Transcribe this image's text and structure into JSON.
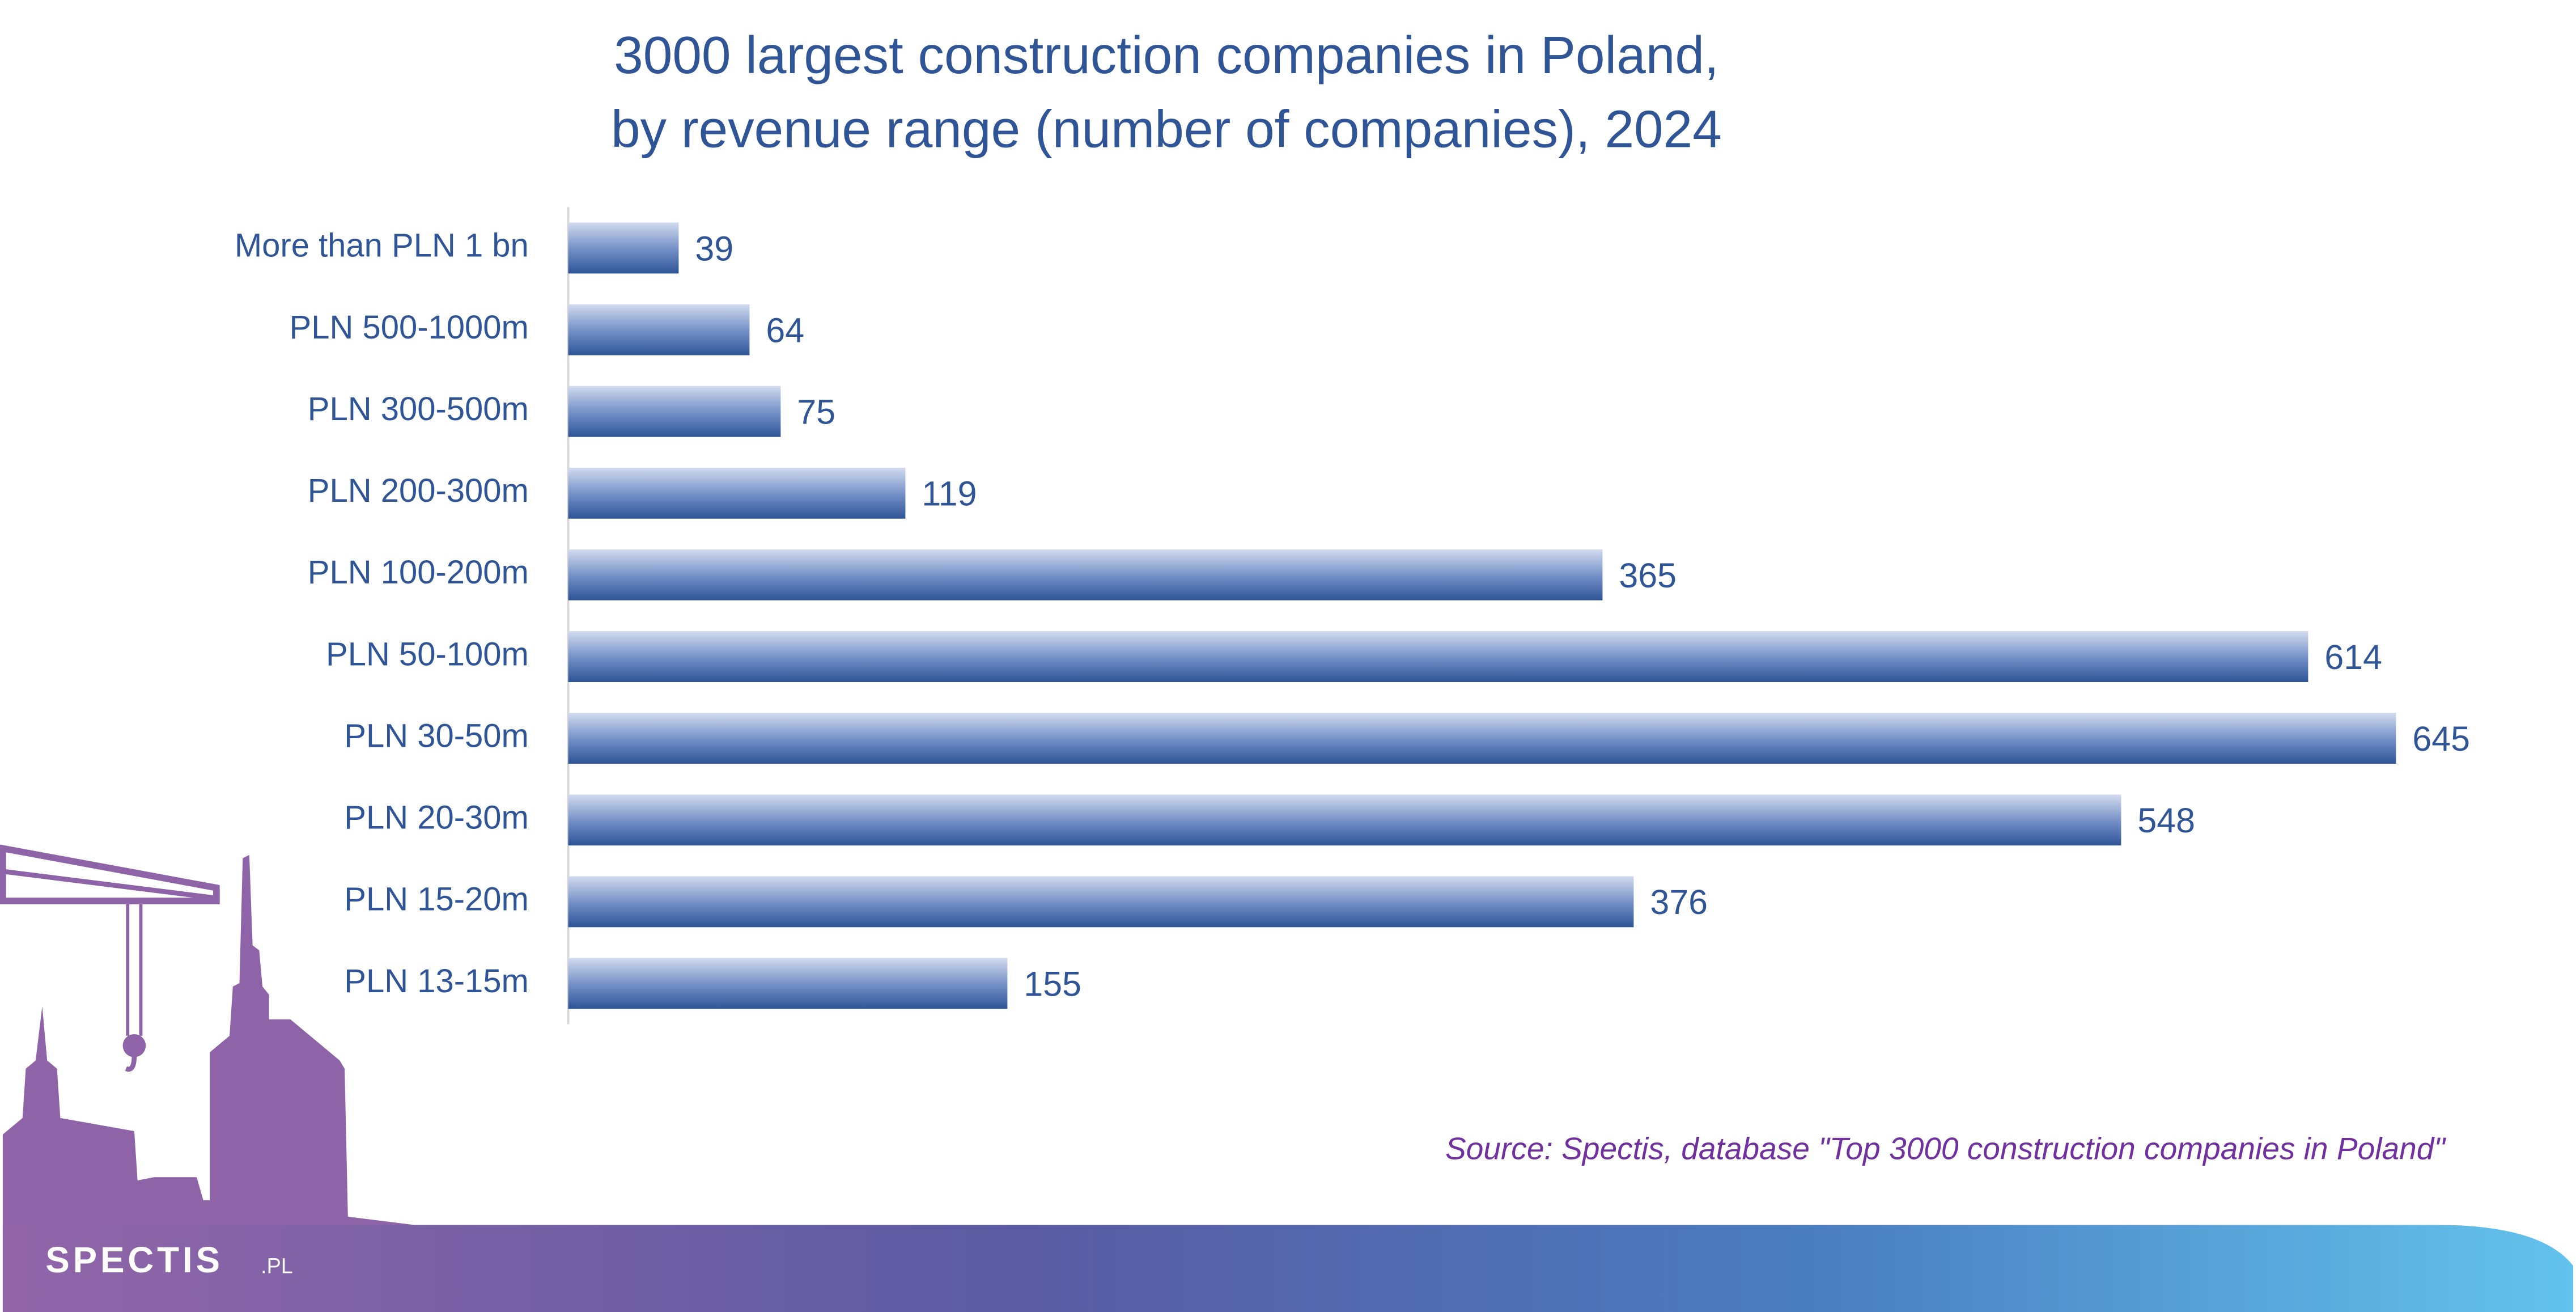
{
  "chart_data": {
    "type": "bar",
    "orientation": "horizontal",
    "title": [
      "3000 largest construction companies in Poland,",
      "by revenue range (number of companies), 2024"
    ],
    "categories": [
      "More than PLN 1 bn",
      "PLN 500-1000m",
      "PLN 300-500m",
      "PLN 200-300m",
      "PLN 100-200m",
      "PLN 50-100m",
      "PLN 30-50m",
      "PLN 20-30m",
      "PLN 15-20m",
      "PLN 13-15m"
    ],
    "values": [
      39,
      64,
      75,
      119,
      365,
      614,
      645,
      548,
      376,
      155
    ],
    "color": "#2f5597",
    "xlim": [
      0,
      700
    ],
    "source": "Source: Spectis, database \"Top 3000 construction companies in Poland\""
  },
  "logo": {
    "name": "SPECTIS",
    "suffix": ".PL"
  }
}
